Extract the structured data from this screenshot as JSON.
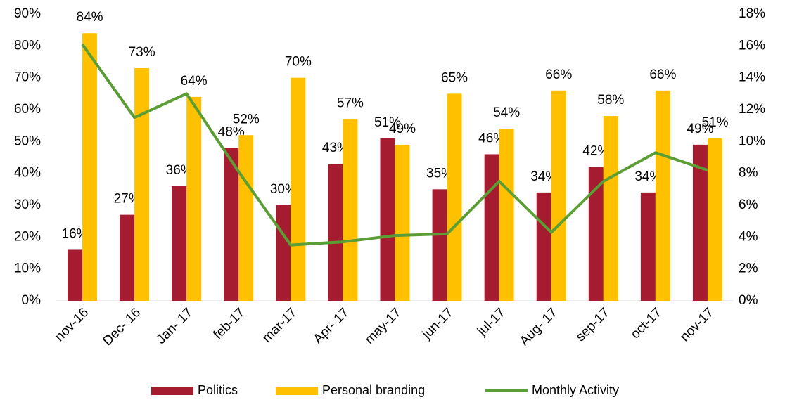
{
  "chart_data": {
    "type": "bar",
    "categories": [
      "nov-16",
      "Dec- 16",
      "Jan- 17",
      "feb-17",
      "mar-17",
      "Apr- 17",
      "may-17",
      "jun-17",
      "jul-17",
      "Aug- 17",
      "sep-17",
      "oct-17",
      "nov-17"
    ],
    "series": [
      {
        "name": "Politics",
        "type": "bar",
        "color": "#a51c30",
        "values": [
          16,
          27,
          36,
          48,
          30,
          43,
          51,
          35,
          46,
          34,
          42,
          34,
          49
        ],
        "value_labels": [
          "16%",
          "27%",
          "36%",
          "48%",
          "30%",
          "43%",
          "51%",
          "35%",
          "46%",
          "34%",
          "42%",
          "34%",
          "49%"
        ]
      },
      {
        "name": "Personal branding",
        "type": "bar",
        "color": "#ffc000",
        "values": [
          84,
          73,
          64,
          52,
          70,
          57,
          49,
          65,
          54,
          66,
          58,
          66,
          51
        ],
        "value_labels": [
          "84%",
          "73%",
          "64%",
          "52%",
          "70%",
          "57%",
          "49%",
          "65%",
          "54%",
          "66%",
          "58%",
          "66%",
          "51%"
        ]
      },
      {
        "name": "Monthly Activity",
        "type": "line",
        "color": "#5b9e35",
        "axis": "y2",
        "values": [
          16.1,
          11.5,
          13,
          8.1,
          3.5,
          3.7,
          4.1,
          4.2,
          7.5,
          4.3,
          7.5,
          9.3,
          8.2
        ]
      }
    ],
    "ylim": [
      0,
      90
    ],
    "yticks": [
      {
        "value": 0,
        "label": "0%"
      },
      {
        "value": 10,
        "label": "10%"
      },
      {
        "value": 20,
        "label": "20%"
      },
      {
        "value": 30,
        "label": "30%"
      },
      {
        "value": 40,
        "label": "40%"
      },
      {
        "value": 50,
        "label": "50%"
      },
      {
        "value": 60,
        "label": "60%"
      },
      {
        "value": 70,
        "label": "70%"
      },
      {
        "value": 80,
        "label": "80%"
      },
      {
        "value": 90,
        "label": "90%"
      }
    ],
    "y2lim": [
      0,
      18
    ],
    "y2ticks": [
      {
        "value": 0,
        "label": "0%"
      },
      {
        "value": 2,
        "label": "2%"
      },
      {
        "value": 4,
        "label": "4%"
      },
      {
        "value": 6,
        "label": "6%"
      },
      {
        "value": 8,
        "label": "8%"
      },
      {
        "value": 10,
        "label": "10%"
      },
      {
        "value": 12,
        "label": "12%"
      },
      {
        "value": 14,
        "label": "14%"
      },
      {
        "value": 16,
        "label": "16%"
      },
      {
        "value": 18,
        "label": "18%"
      }
    ],
    "legend": "bottom"
  }
}
